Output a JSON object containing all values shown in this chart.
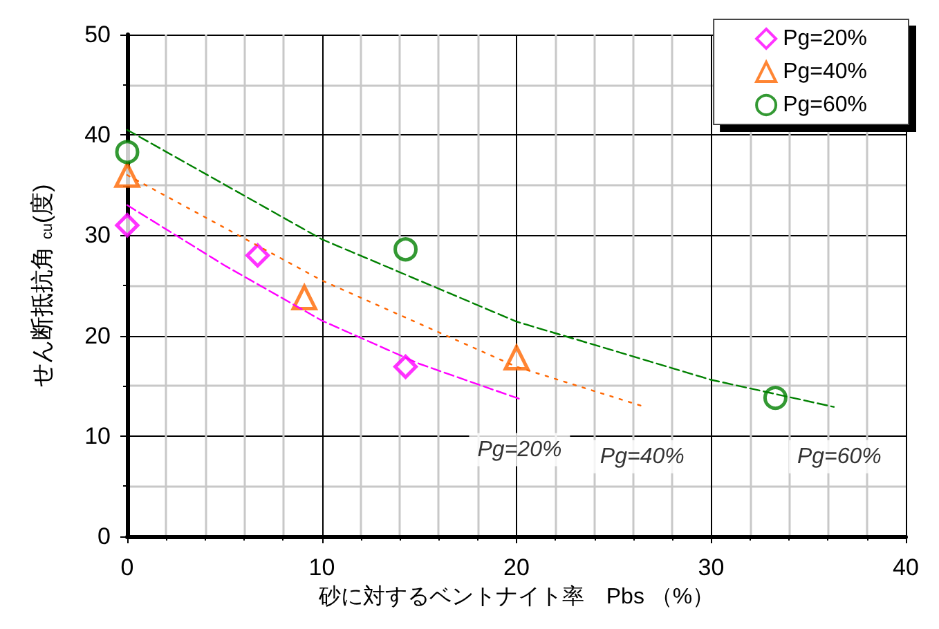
{
  "chart_data": {
    "type": "scatter",
    "xlabel": "砂に対するベントナイト率　Pbs （%）",
    "ylabel": "せん断抵抗角 $_{cu}$(度)",
    "xlim": [
      0,
      40
    ],
    "xticks": [
      0,
      10,
      20,
      30,
      40
    ],
    "ylim": [
      0,
      50
    ],
    "yticks": [
      0,
      10,
      20,
      30,
      40,
      50
    ],
    "grid": true,
    "legend": "top right",
    "series": [
      {
        "name": "Pg=20%",
        "color": "#ff00ff",
        "marker": "diamond",
        "x": [
          0,
          6.7,
          14.3
        ],
        "values": [
          31,
          28,
          16.9
        ]
      },
      {
        "name": "Pg=40%",
        "color": "#ff6600",
        "marker": "triangle",
        "x": [
          0,
          9.1,
          20
        ],
        "values": [
          36,
          23.8,
          17.8
        ]
      },
      {
        "name": "Pg=60%",
        "color": "#008000",
        "marker": "circle",
        "x": [
          0,
          14.3,
          33.3
        ],
        "values": [
          38.3,
          28.6,
          13.8
        ]
      },
      {
        "type": "line",
        "color": "#ff00ff",
        "marker": "none",
        "line_style": "dashed",
        "x": [
          0,
          5,
          10,
          15,
          20.3
        ],
        "values": [
          33,
          27,
          21.5,
          17.2,
          13.6
        ]
      },
      {
        "type": "line",
        "color": "#ff6600",
        "marker": "none",
        "line_style": "dotted",
        "x": [
          0,
          10,
          20,
          26.6
        ],
        "values": [
          36,
          25.5,
          16.9,
          12.9
        ]
      },
      {
        "type": "line",
        "color": "#008000",
        "marker": "none",
        "line_style": "dashed",
        "x": [
          0,
          10,
          20,
          30,
          36.3
        ],
        "values": [
          40.5,
          29.6,
          21.4,
          15.6,
          12.9
        ]
      }
    ],
    "annotations": [
      "Pg=20%",
      "Pg=40%",
      "Pg=60%"
    ]
  }
}
